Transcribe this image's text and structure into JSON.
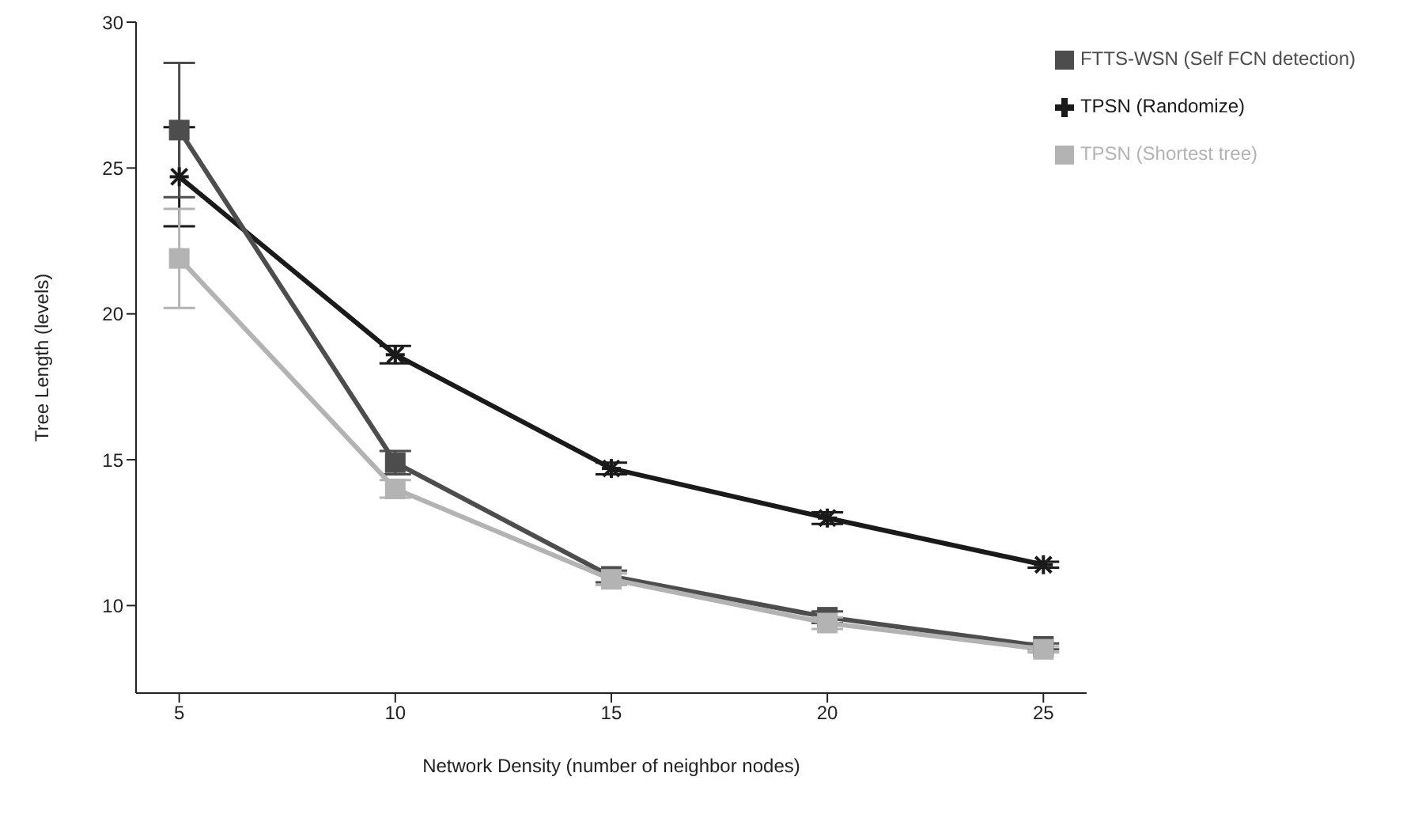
{
  "chart_data": {
    "type": "line",
    "xlabel": "Network Density (number of neighbor nodes)",
    "ylabel": "Tree Length (levels)",
    "x": [
      5,
      10,
      15,
      20,
      25
    ],
    "xlim": [
      4,
      26
    ],
    "xticks": [
      5,
      10,
      15,
      20,
      25
    ],
    "ylim": [
      7,
      30
    ],
    "yticks": [
      10,
      15,
      20,
      25,
      30
    ],
    "grid": false,
    "legend": "top right",
    "series": [
      {
        "name": "TPSN (Randomize)",
        "color": "#1a1a1a",
        "marker": "cross",
        "values": [
          24.7,
          18.6,
          14.7,
          13.0,
          11.4
        ],
        "errors": [
          1.7,
          0.3,
          0.2,
          0.2,
          0.1
        ]
      },
      {
        "name": "TPSN (Shortest tree)",
        "color": "#b3b3b3",
        "marker": "square",
        "values": [
          21.9,
          14.0,
          10.9,
          9.4,
          8.5
        ],
        "errors": [
          1.7,
          0.3,
          0.2,
          0.2,
          0.1
        ]
      },
      {
        "name": "FTTS-WSN (Self FCN detection)",
        "color": "#4d4d4d",
        "marker": "square",
        "values": [
          26.3,
          14.9,
          11.0,
          9.6,
          8.6
        ],
        "errors": [
          2.3,
          0.4,
          0.2,
          0.2,
          0.1
        ]
      }
    ]
  }
}
